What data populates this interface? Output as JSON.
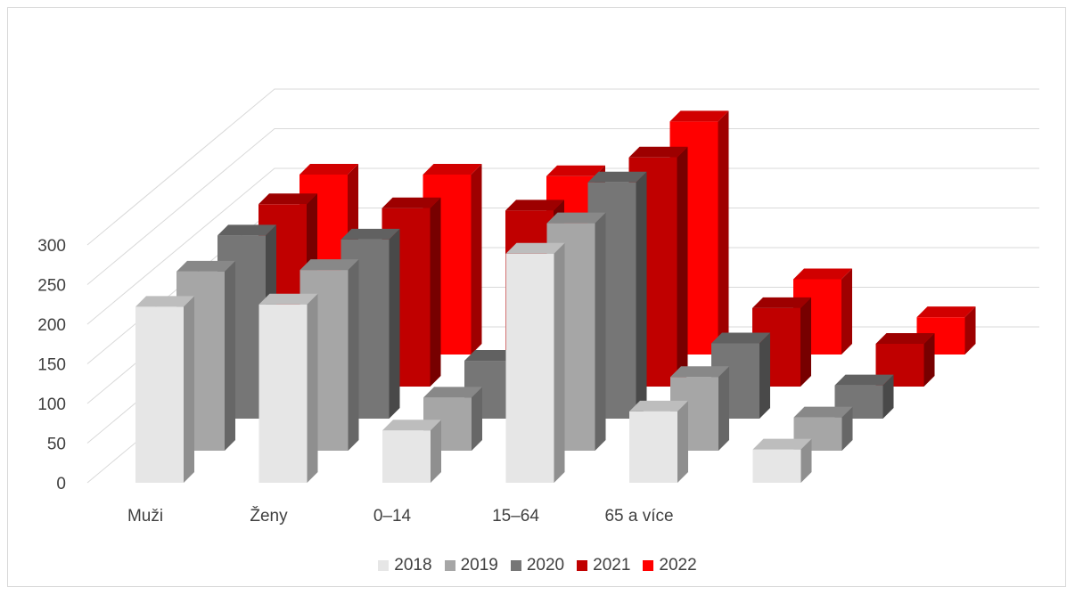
{
  "chart_data": {
    "type": "bar",
    "subtype": "3d-column",
    "title": "",
    "xlabel": "",
    "ylabel": "",
    "categories": [
      "Muži",
      "Ženy",
      "0–14",
      "15–64",
      "65 a více",
      ""
    ],
    "y_ticks": [
      "0",
      "50",
      "100",
      "150",
      "200",
      "250",
      "300"
    ],
    "ylim": [
      0,
      300
    ],
    "grid": true,
    "legend_position": "bottom",
    "series": [
      {
        "name": "2018",
        "color": "#e6e6e6",
        "values": [
          222,
          225,
          66,
          289,
          90,
          42
        ]
      },
      {
        "name": "2019",
        "color": "#a6a6a6",
        "values": [
          226,
          228,
          67,
          287,
          93,
          42
        ]
      },
      {
        "name": "2020",
        "color": "#767676",
        "values": [
          231,
          226,
          73,
          298,
          95,
          42
        ]
      },
      {
        "name": "2021",
        "color": "#c00000",
        "values": [
          230,
          225,
          222,
          289,
          99,
          54
        ]
      },
      {
        "name": "2022",
        "color": "#ff0000",
        "values": [
          227,
          227,
          225,
          294,
          95,
          47
        ]
      }
    ]
  }
}
